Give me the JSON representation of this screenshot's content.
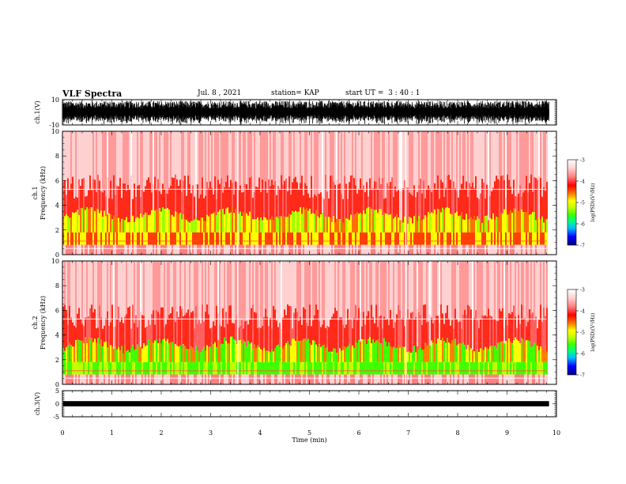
{
  "header": {
    "title": "VLF Spectra",
    "date": "Jul. 8 , 2021",
    "station": "station= KAP",
    "start": "start UT =  3 : 40 : 1"
  },
  "chart_data": [
    {
      "type": "line",
      "panel": "ch1-waveform",
      "ylabel": "ch.1(V)",
      "ylim": [
        -10,
        10
      ],
      "yticks": [
        "10",
        "-10"
      ],
      "xlim": [
        0,
        10
      ],
      "description_values": {
        "amplitude_range": [
          -9,
          9
        ]
      }
    },
    {
      "type": "heatmap",
      "panel": "ch1-spectrogram",
      "ylabel": "ch.1\nFrequency (kHz)",
      "ylim": [
        0,
        10
      ],
      "yticks": [
        "0",
        "2",
        "4",
        "6",
        "8",
        "10"
      ],
      "xlim": [
        0,
        10
      ],
      "data_end_min": 9.8,
      "colorbar": {
        "label": "log(PSD)(V²/Hz)",
        "range": [
          -7,
          -3
        ],
        "ticks": [
          "-3",
          "-4",
          "-5",
          "-6",
          "-7"
        ]
      }
    },
    {
      "type": "heatmap",
      "panel": "ch2-spectrogram",
      "ylabel": "ch.2\nFrequency (kHz)",
      "ylim": [
        0,
        10
      ],
      "yticks": [
        "0",
        "2",
        "4",
        "6",
        "8",
        "10"
      ],
      "xlim": [
        0,
        10
      ],
      "data_end_min": 9.8,
      "colorbar": {
        "label": "log(PSD)(V²/Hz)",
        "range": [
          -7,
          -3
        ],
        "ticks": [
          "-3",
          "-4",
          "-5",
          "-6",
          "-7"
        ]
      }
    },
    {
      "type": "line",
      "panel": "ch3-waveform",
      "ylabel": "ch.3(V)",
      "ylim": [
        -5,
        5
      ],
      "yticks": [
        "5",
        "0",
        "-5"
      ],
      "xlim": [
        0,
        10
      ],
      "xlabel": "Time (min)",
      "xticks": [
        "0",
        "1",
        "2",
        "3",
        "4",
        "5",
        "6",
        "7",
        "8",
        "9",
        "10"
      ]
    }
  ],
  "colors": {
    "cmap": [
      "#000080",
      "#0000ff",
      "#00c0ff",
      "#00ff80",
      "#40ff00",
      "#c0ff00",
      "#ffff00",
      "#ff8000",
      "#ff0000",
      "#ff8080",
      "#ffd0d0",
      "#ffffff"
    ]
  }
}
